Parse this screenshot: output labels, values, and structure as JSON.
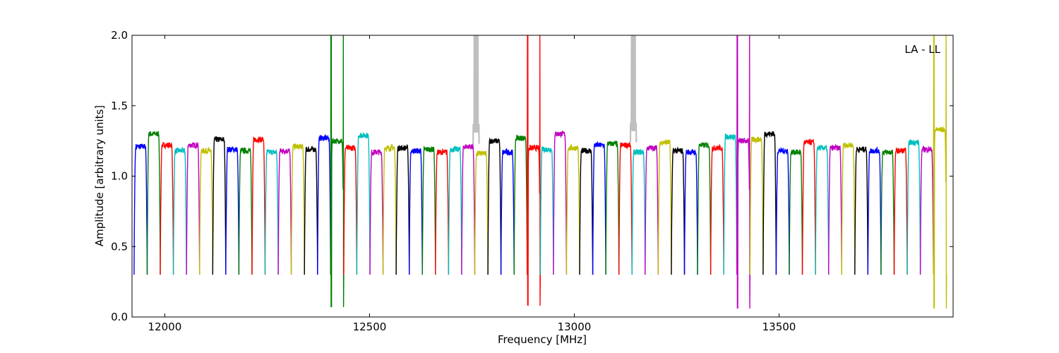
{
  "chart_data": {
    "type": "line",
    "title": "",
    "xlabel": "Frequency [MHz]",
    "ylabel": "Amplitude [arbitrary units]",
    "annotation": "LA - LL",
    "xlim": [
      11920,
      13925
    ],
    "ylim": [
      0,
      2.0
    ],
    "xticks": [
      12000,
      12500,
      13000,
      13500
    ],
    "yticks": [
      0.0,
      0.5,
      1.0,
      1.5,
      2.0
    ],
    "xtick_labels": [
      "12000",
      "12500",
      "13000",
      "13500"
    ],
    "ytick_labels": [
      "0.0",
      "0.5",
      "1.0",
      "1.5",
      "2.0"
    ],
    "grid": false,
    "channel_width_mhz": 32,
    "channel_edge_value": 0.3,
    "color_cycle": [
      "#0000ff",
      "#008000",
      "#ff0000",
      "#00bfbf",
      "#bf00bf",
      "#bfbf00",
      "#000000"
    ],
    "flagged_color": "#bfbfbf",
    "series": [
      {
        "start": 11925,
        "level": 1.21
      },
      {
        "start": 11957,
        "level": 1.3
      },
      {
        "start": 11989,
        "level": 1.22
      },
      {
        "start": 12021,
        "level": 1.18
      },
      {
        "start": 12053,
        "level": 1.22
      },
      {
        "start": 12085,
        "level": 1.18
      },
      {
        "start": 12117,
        "level": 1.26
      },
      {
        "start": 12149,
        "level": 1.19
      },
      {
        "start": 12181,
        "level": 1.18
      },
      {
        "start": 12213,
        "level": 1.26
      },
      {
        "start": 12245,
        "level": 1.17
      },
      {
        "start": 12277,
        "level": 1.18
      },
      {
        "start": 12309,
        "level": 1.21
      },
      {
        "start": 12341,
        "level": 1.19
      },
      {
        "start": 12373,
        "level": 1.27
      },
      {
        "start": 12405,
        "level": 1.25,
        "spike": 2.0,
        "dip": 0.07
      },
      {
        "start": 12437,
        "level": 1.2
      },
      {
        "start": 12469,
        "level": 1.29
      },
      {
        "start": 12501,
        "level": 1.17
      },
      {
        "start": 12533,
        "level": 1.2
      },
      {
        "start": 12565,
        "level": 1.2
      },
      {
        "start": 12597,
        "level": 1.18
      },
      {
        "start": 12629,
        "level": 1.19
      },
      {
        "start": 12661,
        "level": 1.17
      },
      {
        "start": 12693,
        "level": 1.19
      },
      {
        "start": 12725,
        "level": 1.21,
        "flag_spike": 2.0
      },
      {
        "start": 12757,
        "level": 1.16
      },
      {
        "start": 12789,
        "level": 1.25
      },
      {
        "start": 12821,
        "level": 1.17
      },
      {
        "start": 12853,
        "level": 1.27
      },
      {
        "start": 12885,
        "level": 1.2,
        "spike": 2.0,
        "dip": 0.08
      },
      {
        "start": 12917,
        "level": 1.19
      },
      {
        "start": 12949,
        "level": 1.3
      },
      {
        "start": 12981,
        "level": 1.2
      },
      {
        "start": 13013,
        "level": 1.18
      },
      {
        "start": 13045,
        "level": 1.22
      },
      {
        "start": 13077,
        "level": 1.23
      },
      {
        "start": 13109,
        "level": 1.22,
        "flag_spike": 2.0
      },
      {
        "start": 13141,
        "level": 1.17
      },
      {
        "start": 13173,
        "level": 1.2
      },
      {
        "start": 13205,
        "level": 1.24
      },
      {
        "start": 13237,
        "level": 1.18
      },
      {
        "start": 13269,
        "level": 1.17
      },
      {
        "start": 13301,
        "level": 1.22
      },
      {
        "start": 13333,
        "level": 1.2
      },
      {
        "start": 13365,
        "level": 1.28
      },
      {
        "start": 13397,
        "level": 1.25,
        "spike": 2.0,
        "dip": 0.06
      },
      {
        "start": 13429,
        "level": 1.26
      },
      {
        "start": 13461,
        "level": 1.3
      },
      {
        "start": 13493,
        "level": 1.18
      },
      {
        "start": 13525,
        "level": 1.17
      },
      {
        "start": 13557,
        "level": 1.24
      },
      {
        "start": 13589,
        "level": 1.2
      },
      {
        "start": 13621,
        "level": 1.2
      },
      {
        "start": 13653,
        "level": 1.22
      },
      {
        "start": 13685,
        "level": 1.19
      },
      {
        "start": 13717,
        "level": 1.18
      },
      {
        "start": 13749,
        "level": 1.17
      },
      {
        "start": 13781,
        "level": 1.18
      },
      {
        "start": 13813,
        "level": 1.24
      },
      {
        "start": 13845,
        "level": 1.19
      },
      {
        "start": 13877,
        "level": 1.33,
        "spike": 2.0,
        "dip": 0.06
      }
    ]
  }
}
